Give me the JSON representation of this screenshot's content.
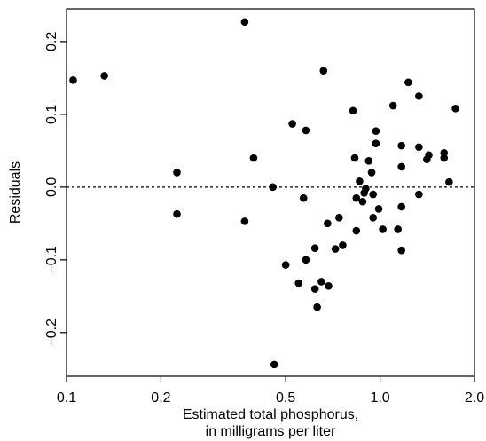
{
  "chart_data": {
    "type": "scatter",
    "title": "",
    "xlabel": "Estimated total phosphorus,\nin milligrams per liter",
    "xlabel_lines": [
      "Estimated total phosphorus,",
      "in milligrams per liter"
    ],
    "ylabel": "Residuals",
    "x_scale": "log",
    "xlim": [
      0.1,
      2.0
    ],
    "ylim": [
      -0.26,
      0.245
    ],
    "x_ticks": [
      0.1,
      0.2,
      0.5,
      1.0,
      2.0
    ],
    "x_tick_labels": [
      "0.1",
      "0.2",
      "0.5",
      "1.0",
      "2.0"
    ],
    "y_ticks": [
      -0.2,
      -0.1,
      0.0,
      0.1,
      0.2
    ],
    "y_tick_labels": [
      "−0.2",
      "−0.1",
      "0.0",
      "0.1",
      "0.2"
    ],
    "reference_line": {
      "y": 0,
      "style": "dashed"
    },
    "grid": false,
    "point_color": "#000000",
    "series": [
      {
        "points": [
          {
            "x": 0.105,
            "y": 0.147
          },
          {
            "x": 0.132,
            "y": 0.153
          },
          {
            "x": 0.225,
            "y": 0.02
          },
          {
            "x": 0.225,
            "y": -0.037
          },
          {
            "x": 0.37,
            "y": 0.227
          },
          {
            "x": 0.37,
            "y": -0.047
          },
          {
            "x": 0.395,
            "y": 0.04
          },
          {
            "x": 0.455,
            "y": 0.0
          },
          {
            "x": 0.46,
            "y": -0.244
          },
          {
            "x": 0.5,
            "y": -0.107
          },
          {
            "x": 0.525,
            "y": 0.087
          },
          {
            "x": 0.55,
            "y": -0.132
          },
          {
            "x": 0.57,
            "y": -0.015
          },
          {
            "x": 0.58,
            "y": 0.078
          },
          {
            "x": 0.58,
            "y": -0.1
          },
          {
            "x": 0.62,
            "y": -0.084
          },
          {
            "x": 0.62,
            "y": -0.14
          },
          {
            "x": 0.63,
            "y": -0.165
          },
          {
            "x": 0.65,
            "y": -0.13
          },
          {
            "x": 0.66,
            "y": 0.16
          },
          {
            "x": 0.68,
            "y": -0.05
          },
          {
            "x": 0.685,
            "y": -0.136
          },
          {
            "x": 0.72,
            "y": -0.085
          },
          {
            "x": 0.74,
            "y": -0.042
          },
          {
            "x": 0.76,
            "y": -0.08
          },
          {
            "x": 0.82,
            "y": 0.105
          },
          {
            "x": 0.83,
            "y": 0.04
          },
          {
            "x": 0.84,
            "y": -0.015
          },
          {
            "x": 0.84,
            "y": -0.06
          },
          {
            "x": 0.86,
            "y": 0.008
          },
          {
            "x": 0.88,
            "y": -0.02
          },
          {
            "x": 0.89,
            "y": -0.008
          },
          {
            "x": 0.9,
            "y": -0.002
          },
          {
            "x": 0.92,
            "y": 0.036
          },
          {
            "x": 0.94,
            "y": 0.02
          },
          {
            "x": 0.95,
            "y": -0.01
          },
          {
            "x": 0.95,
            "y": -0.042
          },
          {
            "x": 0.97,
            "y": 0.077
          },
          {
            "x": 0.97,
            "y": 0.06
          },
          {
            "x": 0.99,
            "y": -0.03
          },
          {
            "x": 1.02,
            "y": -0.058
          },
          {
            "x": 1.1,
            "y": 0.112
          },
          {
            "x": 1.14,
            "y": -0.058
          },
          {
            "x": 1.17,
            "y": 0.057
          },
          {
            "x": 1.17,
            "y": 0.028
          },
          {
            "x": 1.17,
            "y": -0.027
          },
          {
            "x": 1.17,
            "y": -0.087
          },
          {
            "x": 1.23,
            "y": 0.144
          },
          {
            "x": 1.33,
            "y": 0.125
          },
          {
            "x": 1.33,
            "y": 0.055
          },
          {
            "x": 1.33,
            "y": -0.01
          },
          {
            "x": 1.41,
            "y": 0.038
          },
          {
            "x": 1.43,
            "y": 0.044
          },
          {
            "x": 1.6,
            "y": 0.047
          },
          {
            "x": 1.6,
            "y": 0.04
          },
          {
            "x": 1.66,
            "y": 0.007
          },
          {
            "x": 1.74,
            "y": 0.108
          }
        ]
      }
    ]
  }
}
